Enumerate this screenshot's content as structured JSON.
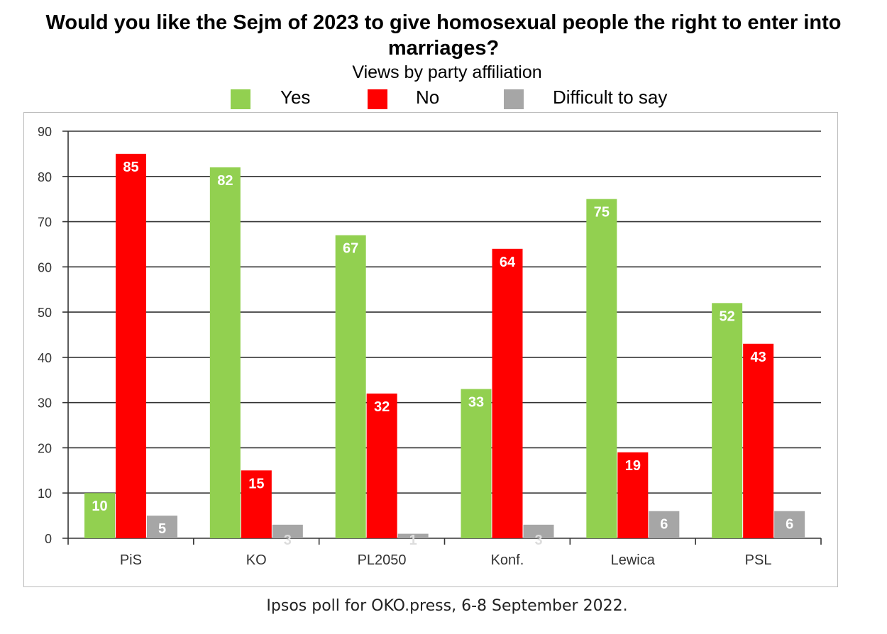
{
  "chart_data": {
    "type": "bar",
    "title": "Would you like the Sejm of 2023 to give homosexual people the right to enter into marriages?",
    "subtitle": "Views by party affiliation",
    "source": "Ipsos poll for OKO.press, 6-8 September 2022.",
    "categories": [
      "PiS",
      "KO",
      "PL2050",
      "Konf.",
      "Lewica",
      "PSL"
    ],
    "series": [
      {
        "name": "Yes",
        "color": "#92d050",
        "values": [
          10,
          82,
          67,
          33,
          75,
          52
        ]
      },
      {
        "name": "No",
        "color": "#ff0000",
        "values": [
          85,
          15,
          32,
          64,
          19,
          43
        ]
      },
      {
        "name": "Difficult to say",
        "color": "#a6a6a6",
        "values": [
          5,
          3,
          1,
          3,
          6,
          6
        ]
      }
    ],
    "ylim": [
      0,
      90
    ],
    "yticks": [
      0,
      10,
      20,
      30,
      40,
      50,
      60,
      70,
      80,
      90
    ],
    "grid": true,
    "legend_position": "top"
  }
}
